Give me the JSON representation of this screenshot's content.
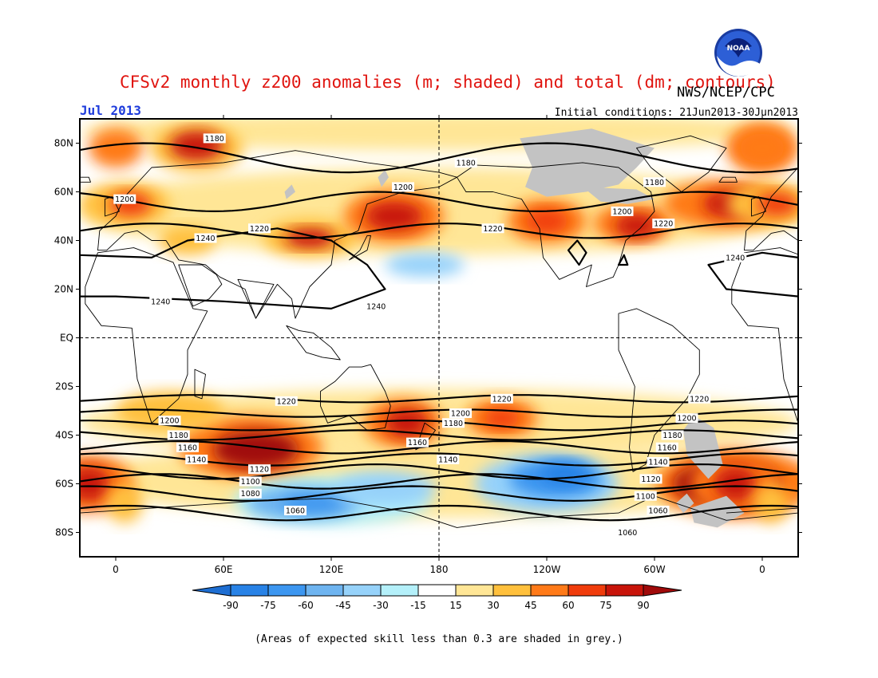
{
  "title": "CFSv2 monthly z200 anomalies (m; shaded) and total (dm; contours)",
  "agency": "NWS/NCEP/CPC",
  "logo_text": "NOAA",
  "month": "Jul 2013",
  "initial_conditions": "Initial conditions: 21Jun2013-30Jun2013",
  "note": "(Areas of expected skill less than 0.3 are shaded in grey.)",
  "lat_ticks": [
    "80N",
    "60N",
    "40N",
    "20N",
    "EQ",
    "20S",
    "40S",
    "60S",
    "80S"
  ],
  "lon_ticks": [
    "0",
    "60E",
    "120E",
    "180",
    "120W",
    "60W",
    "0"
  ],
  "colorbar": {
    "labels": [
      "-90",
      "-75",
      "-60",
      "-45",
      "-30",
      "-15",
      "15",
      "30",
      "45",
      "60",
      "75",
      "90"
    ],
    "colors": [
      "#1e6ed2",
      "#2882e6",
      "#3c96f0",
      "#6eb4f0",
      "#96d2fa",
      "#b4f0fa",
      "#ffffff",
      "#ffe696",
      "#ffc03c",
      "#ff7a18",
      "#f03c0c",
      "#c8140a",
      "#a00a0a"
    ]
  },
  "chart_data": {
    "type": "heatmap",
    "title": "CFSv2 monthly z200 anomalies (m; shaded) and total (dm; contours)",
    "anomaly_levels_m": [
      -90,
      -75,
      -60,
      -45,
      -30,
      -15,
      15,
      30,
      45,
      60,
      75,
      90
    ],
    "grey_mask_note": "Areas of expected skill less than 0.3 are shaded in grey.",
    "contour_interval_dm": 20,
    "contour_labels_dm": [
      {
        "value": 1180,
        "lon": 55,
        "lat": 82
      },
      {
        "value": 1180,
        "lon": 195,
        "lat": 72
      },
      {
        "value": 1180,
        "lon": 300,
        "lat": 64
      },
      {
        "value": 1200,
        "lon": 5,
        "lat": 57
      },
      {
        "value": 1200,
        "lon": 160,
        "lat": 62
      },
      {
        "value": 1200,
        "lon": 282,
        "lat": 52
      },
      {
        "value": 1220,
        "lon": 80,
        "lat": 45
      },
      {
        "value": 1220,
        "lon": 210,
        "lat": 45
      },
      {
        "value": 1220,
        "lon": 305,
        "lat": 47
      },
      {
        "value": 1240,
        "lon": 50,
        "lat": 41
      },
      {
        "value": 1240,
        "lon": 345,
        "lat": 33
      },
      {
        "value": 1240,
        "lon": 25,
        "lat": 15
      },
      {
        "value": 1240,
        "lon": 145,
        "lat": 13
      },
      {
        "value": 1220,
        "lon": 95,
        "lat": -26
      },
      {
        "value": 1220,
        "lon": 215,
        "lat": -25
      },
      {
        "value": 1220,
        "lon": 325,
        "lat": -25
      },
      {
        "value": 1200,
        "lon": 30,
        "lat": -34
      },
      {
        "value": 1200,
        "lon": 192,
        "lat": -31
      },
      {
        "value": 1200,
        "lon": 318,
        "lat": -33
      },
      {
        "value": 1180,
        "lon": 35,
        "lat": -40
      },
      {
        "value": 1180,
        "lon": 188,
        "lat": -35
      },
      {
        "value": 1180,
        "lon": 310,
        "lat": -40
      },
      {
        "value": 1160,
        "lon": 40,
        "lat": -45
      },
      {
        "value": 1160,
        "lon": 168,
        "lat": -43
      },
      {
        "value": 1160,
        "lon": 307,
        "lat": -45
      },
      {
        "value": 1140,
        "lon": 45,
        "lat": -50
      },
      {
        "value": 1140,
        "lon": 185,
        "lat": -50
      },
      {
        "value": 1140,
        "lon": 302,
        "lat": -51
      },
      {
        "value": 1120,
        "lon": 80,
        "lat": -54
      },
      {
        "value": 1120,
        "lon": 298,
        "lat": -58
      },
      {
        "value": 1100,
        "lon": 75,
        "lat": -59
      },
      {
        "value": 1100,
        "lon": 295,
        "lat": -65
      },
      {
        "value": 1080,
        "lon": 75,
        "lat": -64
      },
      {
        "value": 1060,
        "lon": 100,
        "lat": -71
      },
      {
        "value": 1060,
        "lon": 302,
        "lat": -71
      },
      {
        "value": 1060,
        "lon": 285,
        "lat": -80
      }
    ],
    "anomaly_features": [
      {
        "lon": 45,
        "lat": 80,
        "value": 75
      },
      {
        "lon": 10,
        "lat": 55,
        "value": 60
      },
      {
        "lon": 60,
        "lat": 40,
        "value": 45
      },
      {
        "lon": 108,
        "lat": 41,
        "value": 75
      },
      {
        "lon": 152,
        "lat": 50,
        "value": 90
      },
      {
        "lon": 240,
        "lat": 48,
        "value": 60
      },
      {
        "lon": 290,
        "lat": 47,
        "value": 75
      },
      {
        "lon": 335,
        "lat": 55,
        "value": 75
      },
      {
        "lon": 355,
        "lat": 80,
        "value": 60
      },
      {
        "lon": 170,
        "lat": 30,
        "value": -30
      },
      {
        "lon": 75,
        "lat": -45,
        "value": 90
      },
      {
        "lon": 160,
        "lat": -35,
        "value": 90
      },
      {
        "lon": 215,
        "lat": -32,
        "value": 60
      },
      {
        "lon": 350,
        "lat": -62,
        "value": 90
      },
      {
        "lon": 330,
        "lat": -58,
        "value": 90
      },
      {
        "lon": 110,
        "lat": -68,
        "value": -60
      },
      {
        "lon": 240,
        "lat": -60,
        "value": -75
      }
    ],
    "ylim": [
      -90,
      90
    ],
    "xlim": [
      -20,
      380
    ]
  }
}
